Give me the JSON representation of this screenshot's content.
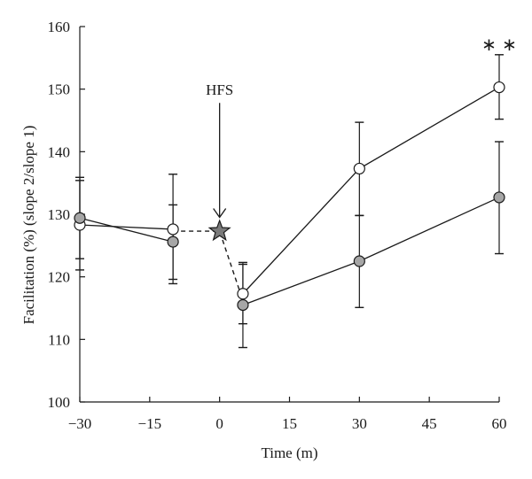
{
  "chart_data": {
    "type": "line",
    "title": "",
    "xlabel": "Time (m)",
    "ylabel": "Facilitation (%) (slope 2/slope 1)",
    "xlim": [
      -30,
      60
    ],
    "ylim": [
      100,
      160
    ],
    "xticks": [
      -30,
      -15,
      0,
      15,
      30,
      45,
      60
    ],
    "xtick_labels": [
      "−30",
      "−15",
      "0",
      "15",
      "30",
      "45",
      "60"
    ],
    "yticks": [
      100,
      110,
      120,
      130,
      140,
      150,
      160
    ],
    "grid": false,
    "series": [
      {
        "marker": "open-circle",
        "color": "#ffffff",
        "x": [
          -30,
          -10,
          5,
          30,
          60
        ],
        "y": [
          128.3,
          127.6,
          117.3,
          137.3,
          150.3
        ],
        "err_upper": [
          135.4,
          136.4,
          122.0,
          144.7,
          155.5
        ],
        "err_lower": [
          121.1,
          118.9,
          112.5,
          129.8,
          145.2
        ]
      },
      {
        "marker": "filled-circle",
        "color": "#a6a6a6",
        "x": [
          -30,
          -10,
          5,
          30,
          60
        ],
        "y": [
          129.4,
          125.6,
          115.5,
          122.5,
          132.7
        ],
        "err_upper": [
          135.9,
          131.5,
          122.3,
          129.8,
          141.6
        ],
        "err_lower": [
          122.9,
          119.6,
          108.7,
          115.1,
          123.7
        ]
      }
    ],
    "connector": {
      "style": "dashed",
      "points": [
        [
          -10,
          127.3
        ],
        [
          0,
          127.3
        ],
        [
          5,
          116.2
        ]
      ]
    },
    "annotations": [
      {
        "text": "HFS",
        "x": 0,
        "arrow_from_y": 147.8,
        "arrow_to_y": 129.5
      },
      {
        "text": "∗ ∗",
        "x": 60,
        "y": 156.2
      }
    ],
    "stimulus_marker": {
      "shape": "star",
      "x": 0,
      "y": 127.3,
      "color": "#7a7a7a"
    }
  }
}
